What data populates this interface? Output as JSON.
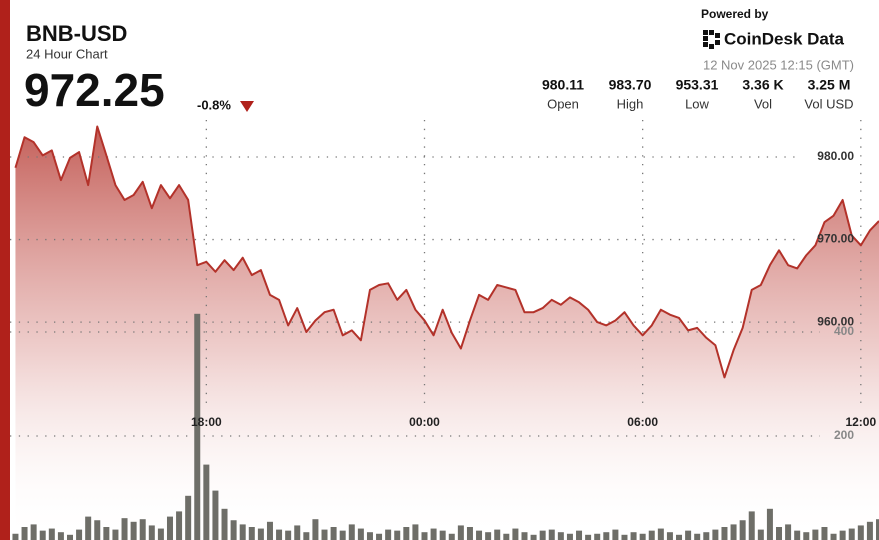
{
  "header": {
    "powered_by": "Powered by",
    "brand": "CoinDesk Data",
    "timestamp": "12 Nov 2025 12:15 (GMT)",
    "price": "972.25",
    "change": "-0.8%",
    "stats": [
      {
        "value": "980.11",
        "label": "Open"
      },
      {
        "value": "983.70",
        "label": "High"
      },
      {
        "value": "953.31",
        "label": "Low"
      },
      {
        "value": "3.36 K",
        "label": "Vol"
      },
      {
        "value": "3.25 M",
        "label": "Vol USD"
      }
    ]
  },
  "chart_data": {
    "type": "line",
    "title": "BNB-USD",
    "subtitle": "24 Hour Chart",
    "x": [
      12.75,
      13,
      13.25,
      13.5,
      13.75,
      14,
      14.25,
      14.5,
      14.75,
      15,
      15.25,
      15.5,
      15.75,
      16,
      16.25,
      16.5,
      16.75,
      17,
      17.25,
      17.5,
      17.75,
      18,
      18.25,
      18.5,
      18.75,
      19,
      19.25,
      19.5,
      19.75,
      20,
      20.25,
      20.5,
      20.75,
      21,
      21.25,
      21.5,
      21.75,
      22,
      22.25,
      22.5,
      22.75,
      23,
      23.25,
      23.5,
      23.75,
      24,
      24.25,
      24.5,
      24.75,
      25,
      25.25,
      25.5,
      25.75,
      26,
      26.25,
      26.5,
      26.75,
      27,
      27.25,
      27.5,
      27.75,
      28,
      28.25,
      28.5,
      28.75,
      29,
      29.25,
      29.5,
      29.75,
      30,
      30.25,
      30.5,
      30.75,
      31,
      31.25,
      31.5,
      31.75,
      32,
      32.25,
      32.5,
      32.75,
      33,
      33.25,
      33.5,
      33.75,
      34,
      34.25,
      34.5,
      34.75,
      35,
      35.25,
      35.5,
      35.75,
      36,
      36.25,
      36.5
    ],
    "series": [
      {
        "color": "#b3322a",
        "values": [
          978.7,
          982.4,
          981.8,
          980.2,
          980.8,
          977.2,
          979.9,
          980.6,
          976.6,
          983.7,
          980.2,
          976.6,
          974.8,
          975.4,
          977.0,
          973.8,
          976.6,
          975.0,
          976.6,
          974.8,
          966.9,
          967.3,
          966.1,
          967.5,
          966.3,
          967.8,
          965.7,
          966.3,
          963.3,
          962.7,
          959.6,
          961.7,
          958.8,
          960.2,
          961.2,
          961.5,
          958.4,
          959.0,
          957.8,
          963.9,
          964.5,
          964.7,
          962.7,
          963.9,
          961.5,
          960.2,
          958.4,
          961.5,
          958.7,
          956.8,
          960.2,
          963.3,
          962.7,
          964.5,
          964.2,
          963.9,
          961.2,
          961.2,
          961.7,
          962.7,
          962.1,
          963.0,
          962.4,
          961.5,
          960.0,
          959.6,
          960.2,
          961.2,
          959.6,
          958.4,
          959.6,
          961.5,
          960.9,
          960.5,
          959.0,
          959.3,
          958.1,
          957.2,
          953.3,
          956.6,
          959.3,
          963.9,
          964.5,
          966.9,
          968.7,
          966.9,
          966.5,
          968.1,
          969.3,
          972.1,
          972.9,
          974.8,
          970.5,
          969.3,
          971.1,
          972.25
        ]
      },
      {
        "type": "bar",
        "axis": "y2",
        "color": "#6e6e68",
        "values": [
          12,
          25,
          30,
          18,
          22,
          15,
          10,
          20,
          45,
          38,
          25,
          20,
          42,
          35,
          40,
          28,
          22,
          45,
          55,
          85,
          435,
          145,
          95,
          60,
          38,
          30,
          25,
          22,
          35,
          20,
          18,
          28,
          15,
          40,
          20,
          25,
          18,
          30,
          22,
          15,
          12,
          20,
          18,
          25,
          30,
          15,
          22,
          18,
          12,
          28,
          25,
          18,
          15,
          20,
          12,
          22,
          15,
          10,
          18,
          20,
          15,
          12,
          18,
          10,
          12,
          15,
          20,
          10,
          15,
          12,
          18,
          22,
          15,
          10,
          18,
          12,
          15,
          20,
          25,
          30,
          38,
          55,
          20,
          60,
          25,
          30,
          18,
          15,
          20,
          25,
          12,
          18,
          22,
          28,
          35,
          40
        ]
      }
    ],
    "xlim": [
      12.6,
      36.5
    ],
    "xticks": [
      {
        "value": 18,
        "label": "18:00"
      },
      {
        "value": 24,
        "label": "00:00"
      },
      {
        "value": 30,
        "label": "06:00"
      },
      {
        "value": 36,
        "label": "12:00"
      }
    ],
    "ylim": [
      933.6,
      990
    ],
    "yticks": [
      {
        "value": 960,
        "label": "960.00"
      },
      {
        "value": 970,
        "label": "970.00"
      },
      {
        "value": 980,
        "label": "980.00"
      }
    ],
    "y2lim": [
      0,
      800
    ],
    "y2ticks": [
      200,
      400
    ],
    "grid": true
  }
}
